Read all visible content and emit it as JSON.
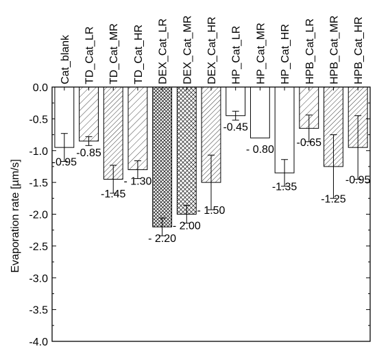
{
  "chart_data": {
    "type": "bar",
    "ylabel": "Evaporation rate [µm/s]",
    "ylim": [
      -4.0,
      0.0
    ],
    "yticks": [
      "0.0",
      "-0.5",
      "-1.0",
      "-1.5",
      "-2.0",
      "-2.5",
      "-3.0",
      "-3.5",
      "-4.0"
    ],
    "grid": false,
    "categories": [
      "Cat_blank",
      "TD_Cat_LR",
      "TD_Cat_MR",
      "TD_Cat_HR",
      "DEX_Cat_LR",
      "DEX_Cat_MR",
      "DEX_Cat_HR",
      "HP_Cat_LR",
      "HP_Cat_MR",
      "HP_Cat_HR",
      "HPB_Cat_LR",
      "HPB_Cat_MR",
      "HPB_Cat_HR"
    ],
    "values": [
      -0.95,
      -0.85,
      -1.45,
      -1.3,
      -2.2,
      -2.0,
      -1.5,
      -0.45,
      -0.8,
      -1.35,
      -0.65,
      -1.25,
      -0.95
    ],
    "error": [
      0.22,
      0.07,
      0.22,
      0.14,
      0.14,
      0.14,
      0.43,
      0.07,
      0.0,
      0.21,
      0.21,
      0.5,
      0.5
    ],
    "value_labels": [
      "-0.95",
      "-0.85",
      "-1.45",
      "- 1.30",
      "- 2.20",
      "- 2.00",
      "- 1.50",
      "-0.45",
      "- 0.80",
      "-1.35",
      "-0.65",
      "-1.25",
      "-0.95"
    ],
    "patterns": [
      "none",
      "sparse-diagonal",
      "dense-diagonal",
      "sparse-diagonal",
      "dense-crosshatch",
      "crosshatch",
      "dense-diagonal",
      "none",
      "none",
      "none",
      "sparse-diagonal",
      "dense-diagonal",
      "dense-diagonal"
    ]
  }
}
